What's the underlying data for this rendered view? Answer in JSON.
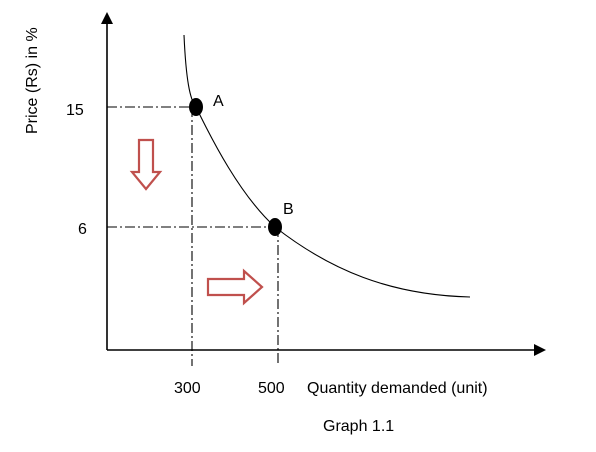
{
  "chart_data": {
    "type": "line",
    "title": "",
    "caption": "Graph 1.1",
    "xlabel": "Quantity demanded (unit)",
    "ylabel": "Price (Rs) in %",
    "curve": "demand",
    "points": [
      {
        "label": "A",
        "x": 300,
        "y": 15
      },
      {
        "label": "B",
        "x": 500,
        "y": 6
      }
    ],
    "x_ticks": [
      "300",
      "500"
    ],
    "y_ticks": [
      "15",
      "6"
    ],
    "guides": "dash-dot lines from each point to both axes",
    "arrows": [
      {
        "direction": "down",
        "meaning": "price falls"
      },
      {
        "direction": "right",
        "meaning": "quantity demanded rises"
      }
    ],
    "colors": {
      "curve": "#000000",
      "arrow_stroke": "#c0504d",
      "point": "#000000"
    },
    "grid": false,
    "legend": "none"
  }
}
